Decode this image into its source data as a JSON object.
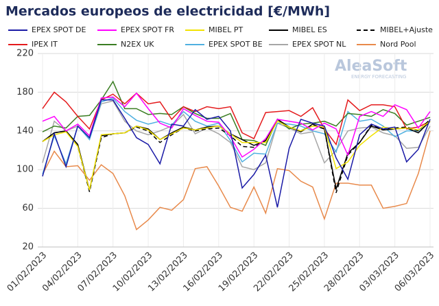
{
  "chart_data": {
    "type": "line",
    "title": "Mercados europeos de electricidad [€/MWh]",
    "watermark": [
      "AleaSoft",
      "ENERGY FORECASTING"
    ],
    "categories": [
      "01/02/2023",
      null,
      null,
      "04/02/2023",
      null,
      null,
      "07/02/2023",
      null,
      null,
      "10/02/2023",
      null,
      null,
      "13/02/2023",
      null,
      null,
      "16/02/2023",
      null,
      null,
      "19/02/2023",
      null,
      null,
      "22/02/2023",
      null,
      null,
      "25/02/2023",
      null,
      null,
      "28/02/2023",
      null,
      null,
      "03/03/2023",
      null,
      null,
      "06/03/2023"
    ],
    "ylim": [
      20,
      220
    ],
    "yticks": [
      20,
      60,
      100,
      140,
      180,
      220
    ],
    "grid": true,
    "series": [
      {
        "name": "EPEX SPOT DE",
        "color": "#1a1aa6",
        "values": [
          93,
          137,
          103,
          145,
          133,
          172,
          172,
          153,
          133,
          126,
          106,
          147,
          145,
          162,
          152,
          155,
          140,
          81,
          95,
          115,
          61,
          122,
          152,
          148,
          145,
          112,
          90,
          136,
          147,
          142,
          144,
          108,
          121,
          152
        ]
      },
      {
        "name": "EPEX SPOT FR",
        "color": "#ff00ff",
        "values": [
          150,
          155,
          140,
          147,
          135,
          174,
          175,
          165,
          179,
          163,
          148,
          143,
          163,
          156,
          150,
          149,
          134,
          113,
          121,
          132,
          152,
          150,
          148,
          141,
          148,
          142,
          115,
          155,
          160,
          155,
          167,
          162,
          143,
          160
        ]
      },
      {
        "name": "MIBEL PT",
        "color": "#f2e200",
        "values": [
          129,
          136,
          139,
          124,
          79,
          136,
          137,
          138,
          145,
          141,
          131,
          137,
          143,
          141,
          143,
          145,
          137,
          128,
          128,
          128,
          150,
          144,
          140,
          145,
          144,
          101,
          108,
          125,
          135,
          144,
          142,
          143,
          141,
          150
        ]
      },
      {
        "name": "MIBEL ES",
        "color": "#000000",
        "values": [
          129,
          138,
          140,
          126,
          79,
          135,
          137,
          138,
          145,
          142,
          131,
          138,
          144,
          141,
          144,
          145,
          137,
          131,
          125,
          130,
          152,
          144,
          139,
          147,
          142,
          80,
          117,
          128,
          145,
          141,
          142,
          143,
          138,
          150
        ]
      },
      {
        "name": "MIBEL+Ajuste",
        "color": "#000000",
        "dash": true,
        "values": [
          129,
          138,
          140,
          124,
          77,
          133,
          137,
          138,
          144,
          140,
          128,
          136,
          143,
          140,
          142,
          143,
          135,
          124,
          123,
          130,
          152,
          144,
          140,
          146,
          142,
          76,
          115,
          128,
          146,
          141,
          143,
          144,
          140,
          152
        ]
      },
      {
        "name": "IPEX IT",
        "color": "#e41a1c",
        "values": [
          163,
          180,
          170,
          155,
          142,
          172,
          178,
          168,
          179,
          168,
          170,
          152,
          165,
          160,
          165,
          163,
          165,
          138,
          132,
          159,
          160,
          161,
          155,
          164,
          142,
          126,
          172,
          161,
          167,
          167,
          165,
          142,
          144,
          150
        ]
      },
      {
        "name": "N2EX UK",
        "color": "#3a7d22",
        "values": [
          139,
          145,
          143,
          155,
          156,
          172,
          191,
          163,
          163,
          157,
          158,
          157,
          165,
          158,
          153,
          153,
          158,
          131,
          130,
          125,
          152,
          142,
          147,
          148,
          150,
          145,
          158,
          157,
          155,
          162,
          158,
          146,
          150,
          154
        ]
      },
      {
        "name": "EPEX SPOT BE",
        "color": "#4fb0e0",
        "values": [
          95,
          135,
          106,
          145,
          131,
          170,
          174,
          160,
          151,
          147,
          150,
          146,
          160,
          150,
          145,
          148,
          130,
          108,
          117,
          116,
          148,
          147,
          145,
          140,
          137,
          118,
          160,
          150,
          152,
          145,
          134,
          140,
          140,
          150
        ]
      },
      {
        "name": "EPEX SPOT NL",
        "color": "#a6a6a6",
        "values": [
          107,
          150,
          140,
          145,
          132,
          168,
          171,
          150,
          140,
          136,
          140,
          145,
          157,
          137,
          143,
          137,
          128,
          103,
          100,
          107,
          148,
          143,
          137,
          139,
          107,
          120,
          140,
          143,
          144,
          138,
          135,
          122,
          123,
          145
        ]
      },
      {
        "name": "Nord Pool",
        "color": "#e8894a",
        "values": [
          95,
          119,
          103,
          104,
          89,
          105,
          96,
          73,
          38,
          48,
          61,
          58,
          69,
          101,
          103,
          83,
          61,
          57,
          82,
          55,
          101,
          99,
          88,
          82,
          49,
          86,
          86,
          84,
          84,
          60,
          62,
          65,
          96,
          140
        ]
      }
    ]
  }
}
